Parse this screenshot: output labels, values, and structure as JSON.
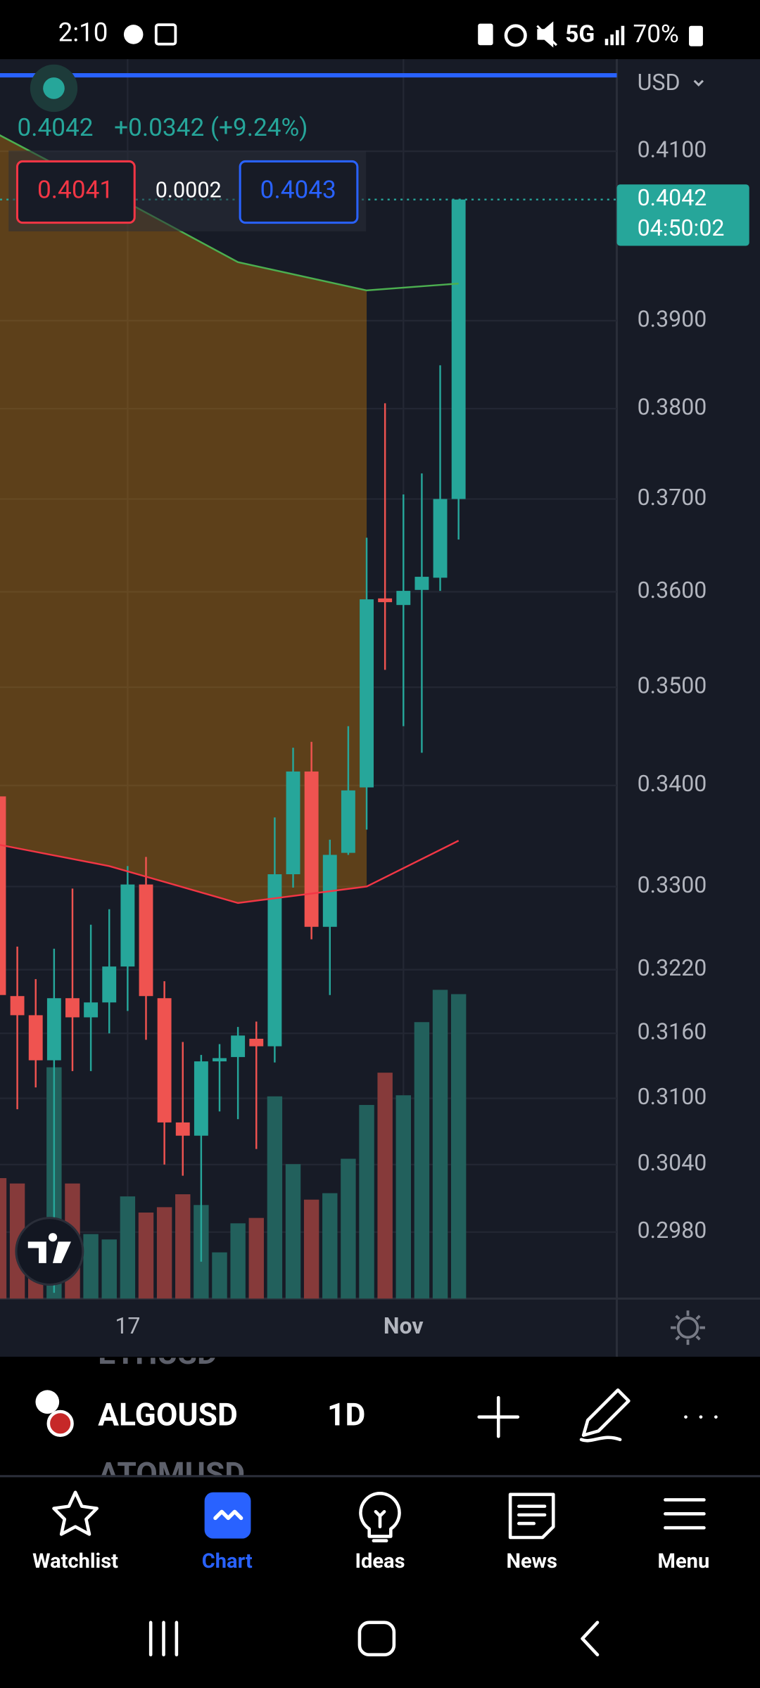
{
  "status_bar": {
    "time": "2:10",
    "network": "5G",
    "battery": "70%"
  },
  "quote": {
    "change": "+0.0342 (+9.24%)",
    "bid": "0.4041",
    "spread": "0.0002",
    "ask": "0.4043",
    "currency": "USD",
    "countdown": "04:50:02"
  },
  "chart_data": {
    "type": "candlestick",
    "log_scale": true,
    "grid": true,
    "up_color": "#26a69a",
    "down_color": "#ef5350",
    "volume_up_color": "#22605c",
    "volume_down_color": "#863a3a",
    "categories": [
      null,
      null,
      null,
      null,
      null,
      null,
      null,
      "17",
      null,
      null,
      null,
      null,
      null,
      null,
      null,
      null,
      null,
      null,
      null,
      null,
      null,
      null,
      "Nov",
      null,
      null,
      null
    ],
    "open": [
      0.3389,
      0.3195,
      0.3177,
      0.3135,
      0.3193,
      0.3175,
      0.3189,
      0.3223,
      0.3302,
      0.3193,
      0.3078,
      0.3066,
      0.3134,
      0.3138,
      0.3155,
      0.3148,
      0.3312,
      0.3414,
      0.3261,
      0.3333,
      0.3398,
      0.3593,
      0.3586,
      0.3602,
      0.3615,
      0.37
    ],
    "high": [
      0.342,
      0.3242,
      0.3211,
      0.324,
      0.3298,
      0.3263,
      0.3278,
      0.332,
      0.3329,
      0.3209,
      0.3152,
      0.314,
      0.315,
      0.3166,
      0.3171,
      0.3368,
      0.3438,
      0.3444,
      0.3346,
      0.346,
      0.3658,
      0.3806,
      0.3705,
      0.3728,
      0.3849,
      0.4042
    ],
    "low": [
      0.315,
      0.309,
      0.311,
      0.2927,
      0.3125,
      0.3125,
      0.316,
      0.3181,
      0.3154,
      0.304,
      0.303,
      0.2954,
      0.3088,
      0.3081,
      0.3054,
      0.3133,
      0.3299,
      0.3249,
      0.3196,
      0.3331,
      0.3356,
      0.3518,
      0.346,
      0.3433,
      0.3601,
      0.3656
    ],
    "close": [
      0.3196,
      0.3177,
      0.3135,
      0.3193,
      0.3175,
      0.3189,
      0.3223,
      0.3302,
      0.3195,
      0.3078,
      0.3066,
      0.3134,
      0.3137,
      0.3158,
      0.3148,
      0.3312,
      0.3414,
      0.3261,
      0.3331,
      0.3395,
      0.3592,
      0.3589,
      0.3601,
      0.3616,
      0.37,
      0.4042
    ],
    "volume": [
      112,
      107,
      25,
      215,
      107,
      60,
      55,
      95,
      80,
      85,
      97,
      87,
      43,
      70,
      75,
      188,
      125,
      92,
      98,
      130,
      180,
      210,
      189,
      257,
      287,
      283
    ],
    "bands": {
      "x": [
        0,
        6,
        13,
        20,
        25
      ],
      "upper": [
        0.412,
        0.405,
        0.3968,
        0.3935,
        0.3943
      ],
      "lower": [
        0.3341,
        0.332,
        0.3284,
        0.33,
        0.3345
      ],
      "upper_color": "#4caf50",
      "lower_color": "#f23645",
      "fill_color": "#ff9800"
    },
    "ylim": [
      0.2922,
      0.4213
    ],
    "yticks": [
      {
        "value": 0.41,
        "label": "0.4100"
      },
      {
        "value": 0.39,
        "label": "0.3900"
      },
      {
        "value": 0.38,
        "label": "0.3800"
      },
      {
        "value": 0.37,
        "label": "0.3700"
      },
      {
        "value": 0.36,
        "label": "0.3600"
      },
      {
        "value": 0.35,
        "label": "0.3500"
      },
      {
        "value": 0.34,
        "label": "0.3400"
      },
      {
        "value": 0.33,
        "label": "0.3300"
      },
      {
        "value": 0.322,
        "label": "0.3220"
      },
      {
        "value": 0.316,
        "label": "0.3160"
      },
      {
        "value": 0.31,
        "label": "0.3100"
      },
      {
        "value": 0.304,
        "label": "0.3040"
      },
      {
        "value": 0.298,
        "label": "0.2980"
      }
    ]
  },
  "toolbar": {
    "picker_prev": "ETHUSD",
    "symbol": "ALGOUSD",
    "picker_next": "ATOMUSD",
    "interval": "1D"
  },
  "nav": [
    "Watchlist",
    "Chart",
    "Ideas",
    "News",
    "Menu"
  ]
}
